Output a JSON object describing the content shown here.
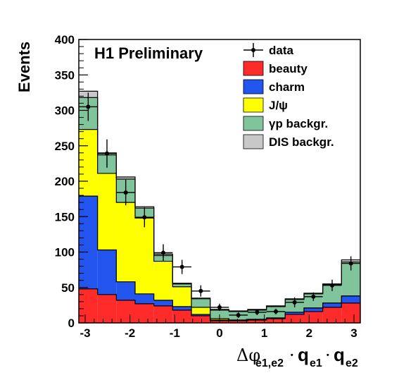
{
  "chart_data": {
    "type": "histogram-stacked",
    "title": "H1 Preliminary",
    "ylabel": "Events",
    "xlabel": {
      "main": "Δφ",
      "sub1": "e1,e2",
      "dot": "·",
      "q": "q",
      "sub2": "e1",
      "sub3": "e2"
    },
    "xlim": [
      -3.14159,
      3.14159
    ],
    "ylim": [
      0,
      400
    ],
    "x_ticks": [
      -3,
      -2,
      -1,
      0,
      1,
      2,
      3
    ],
    "y_ticks": [
      0,
      50,
      100,
      150,
      200,
      250,
      300,
      350,
      400
    ],
    "n_bins": 15,
    "legend": [
      "data",
      "beauty",
      "charm",
      "J/ψ",
      "γp backgr.",
      "DIS backgr."
    ],
    "series": [
      {
        "name": "beauty",
        "color": "#ff2a2a",
        "values": [
          48,
          40,
          32,
          27,
          24,
          18,
          10,
          3,
          3,
          4,
          6,
          12,
          16,
          22,
          28
        ]
      },
      {
        "name": "charm",
        "color": "#2255ee",
        "values": [
          131,
          63,
          26,
          14,
          8,
          5,
          2,
          1,
          1,
          1,
          1,
          3,
          5,
          6,
          10
        ]
      },
      {
        "name": "J/ψ",
        "color": "#ffff00",
        "values": [
          94,
          108,
          112,
          107,
          55,
          28,
          10,
          2,
          0,
          0,
          0,
          0,
          0,
          0,
          0
        ]
      },
      {
        "name": "γp backgr.",
        "color": "#7fc49a",
        "values": [
          45,
          26,
          33,
          14,
          8,
          4,
          12,
          12,
          12,
          13,
          16,
          18,
          20,
          26,
          48
        ]
      },
      {
        "name": "DIS backgr.",
        "color": "#c8c8c8",
        "values": [
          9,
          3,
          3,
          2,
          2,
          1,
          1,
          1,
          1,
          1,
          1,
          1,
          1,
          1,
          3
        ]
      }
    ],
    "data_points": [
      {
        "y": 305,
        "err": 20
      },
      {
        "y": 239,
        "err": 20
      },
      {
        "y": 184,
        "err": 18
      },
      {
        "y": 149,
        "err": 14
      },
      {
        "y": 99,
        "err": 12
      },
      {
        "y": 79,
        "err": 10
      },
      {
        "y": 45,
        "err": 8
      },
      {
        "y": 22,
        "err": 5
      },
      {
        "y": 11,
        "err": 4
      },
      {
        "y": 15,
        "err": 4
      },
      {
        "y": 16,
        "err": 4
      },
      {
        "y": 29,
        "err": 7
      },
      {
        "y": 37,
        "err": 6
      },
      {
        "y": 53,
        "err": 8
      },
      {
        "y": 84,
        "err": 10
      }
    ]
  }
}
